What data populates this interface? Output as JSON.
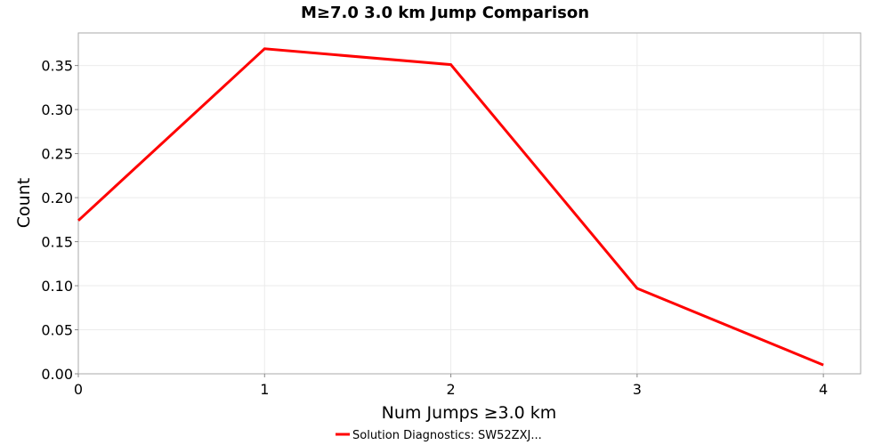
{
  "chart_data": {
    "type": "line",
    "title": "M≥7.0 3.0 km Jump Comparison",
    "xlabel": "Num Jumps ≥3.0 km",
    "ylabel": "Count",
    "xlim": [
      0,
      4.2
    ],
    "ylim": [
      0,
      0.387
    ],
    "xticks": [
      0,
      1,
      2,
      3,
      4
    ],
    "xtick_labels": [
      "0",
      "1",
      "2",
      "3",
      "4"
    ],
    "yticks": [
      0,
      0.05,
      0.1,
      0.15,
      0.2,
      0.25,
      0.3,
      0.35
    ],
    "ytick_labels": [
      "0.00",
      "0.05",
      "0.10",
      "0.15",
      "0.20",
      "0.25",
      "0.30",
      "0.35"
    ],
    "grid": true,
    "legend_position": "bottom-center",
    "series": [
      {
        "name": "Solution Diagnostics: SW52ZXJ...",
        "color": "#ff0000",
        "x": [
          0,
          1,
          2,
          3,
          4
        ],
        "y": [
          0.174,
          0.369,
          0.351,
          0.097,
          0.01
        ]
      }
    ]
  }
}
